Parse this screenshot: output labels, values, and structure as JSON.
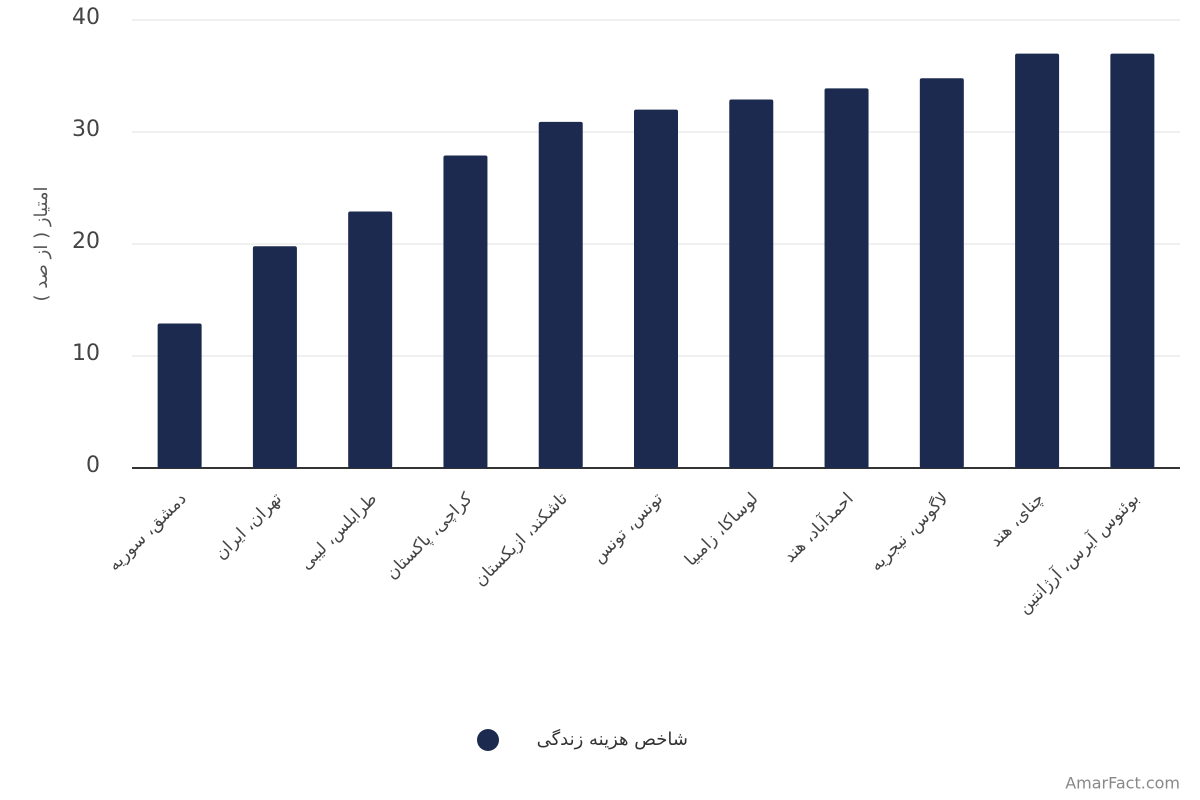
{
  "chart_data": {
    "type": "bar",
    "y_label": "امتیاز ( از صد )",
    "categories": [
      "دمشق، سوریه",
      "تهران، ایران",
      "طرابلس، لیبی",
      "کراچی، پاکستان",
      "تاشکند، ازبکستان",
      "تونس، تونس",
      "لوساکا، زامبیا",
      "احمدآباد، هند",
      "لاگوس، نیجریه",
      "چنای، هند",
      "بوئنوس آیرس، آرژانتین"
    ],
    "series": [
      {
        "name": "شاخص هزینه زندگی",
        "color": "#1b2a4e",
        "values": [
          12.9,
          19.8,
          22.9,
          27.9,
          30.9,
          32.0,
          32.9,
          33.9,
          34.8,
          37.0,
          37.0
        ]
      }
    ],
    "ylim": [
      0,
      40
    ],
    "yticks": [
      0,
      10,
      20,
      30,
      40
    ],
    "grid": true,
    "watermark": "AmarFact.com"
  }
}
